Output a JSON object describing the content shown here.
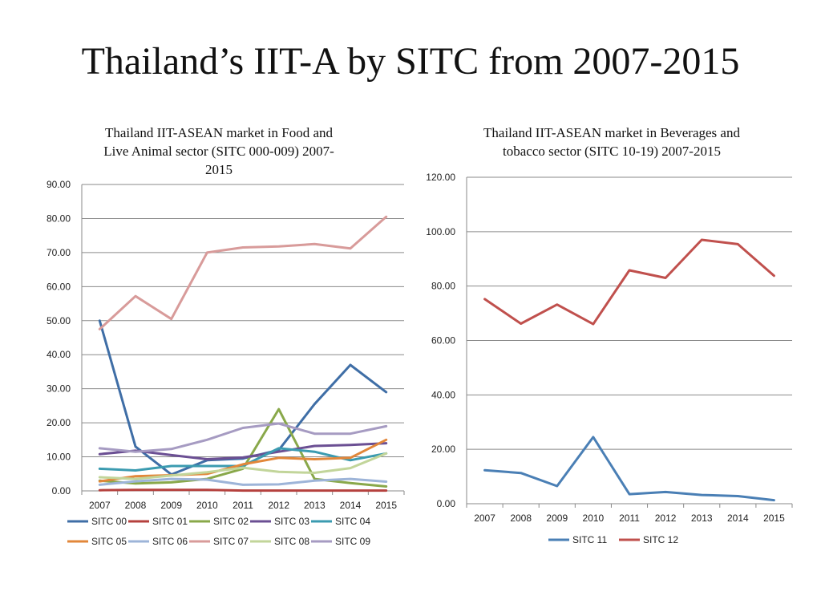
{
  "slide": {
    "title": "Thailand’s IIT-A by SITC from 2007-2015"
  },
  "chart_data": [
    {
      "type": "line",
      "title": "Thailand IIT-ASEAN market in Food and Live Animal sector (SITC 000-009) 2007-2015",
      "title_lines": [
        "Thailand IIT-ASEAN market in Food and",
        "Live Animal sector (SITC 000-009) 2007-",
        "2015"
      ],
      "xlabel": "",
      "ylabel": "",
      "categories": [
        "2007",
        "2008",
        "2009",
        "2010",
        "2011",
        "2012",
        "2013",
        "2014",
        "2015"
      ],
      "ylim": [
        0,
        90
      ],
      "yticks": [
        "0.00",
        "10.00",
        "20.00",
        "30.00",
        "40.00",
        "50.00",
        "60.00",
        "70.00",
        "80.00",
        "90.00"
      ],
      "grid": true,
      "legend": "bottom",
      "series": [
        {
          "name": "SITC 00",
          "color": "#3f6ea6",
          "values": [
            50.0,
            13.0,
            4.8,
            9.0,
            9.5,
            12.0,
            25.5,
            37.0,
            29.0
          ]
        },
        {
          "name": "SITC 01",
          "color": "#b5413e",
          "values": [
            0.2,
            0.3,
            0.3,
            0.3,
            0.1,
            0.1,
            0.1,
            0.1,
            0.1
          ]
        },
        {
          "name": "SITC 02",
          "color": "#89a84a",
          "values": [
            3.0,
            2.2,
            2.5,
            3.5,
            6.5,
            24.0,
            3.5,
            2.3,
            1.3
          ]
        },
        {
          "name": "SITC 03",
          "color": "#6b4f93",
          "values": [
            10.8,
            11.8,
            10.5,
            9.3,
            9.8,
            11.5,
            13.2,
            13.5,
            14.0
          ]
        },
        {
          "name": "SITC 04",
          "color": "#3b9bb0",
          "values": [
            6.5,
            6.0,
            7.3,
            7.3,
            7.3,
            12.5,
            11.5,
            9.0,
            11.0
          ]
        },
        {
          "name": "SITC 05",
          "color": "#e2873a",
          "values": [
            2.8,
            4.3,
            4.6,
            5.0,
            7.8,
            9.7,
            9.3,
            9.7,
            15.0
          ]
        },
        {
          "name": "SITC 06",
          "color": "#9db4d8",
          "values": [
            1.8,
            2.8,
            3.5,
            3.3,
            1.8,
            1.9,
            3.0,
            3.5,
            2.7
          ]
        },
        {
          "name": "SITC 07",
          "color": "#d89b9a",
          "values": [
            47.5,
            57.2,
            50.5,
            70.0,
            71.5,
            71.8,
            72.5,
            71.2,
            80.5
          ]
        },
        {
          "name": "SITC 08",
          "color": "#c2d59a",
          "values": [
            4.0,
            3.5,
            4.5,
            5.5,
            6.8,
            5.6,
            5.3,
            6.7,
            11.0
          ]
        },
        {
          "name": "SITC 09",
          "color": "#a69bc2",
          "values": [
            12.5,
            11.5,
            12.3,
            15.0,
            18.5,
            19.8,
            16.8,
            16.8,
            19.0
          ]
        }
      ]
    },
    {
      "type": "line",
      "title": "Thailand IIT-ASEAN market in Beverages and tobacco sector (SITC 10-19) 2007-2015",
      "title_lines": [
        "Thailand IIT-ASEAN market in Beverages and",
        "tobacco sector (SITC 10-19) 2007-2015"
      ],
      "xlabel": "",
      "ylabel": "",
      "categories": [
        "2007",
        "2008",
        "2009",
        "2010",
        "2011",
        "2012",
        "2013",
        "2014",
        "2015"
      ],
      "ylim": [
        0,
        120
      ],
      "yticks": [
        "0.00",
        "20.00",
        "40.00",
        "60.00",
        "80.00",
        "100.00",
        "120.00"
      ],
      "grid": true,
      "legend": "bottom",
      "series": [
        {
          "name": "SITC 11",
          "color": "#4a7fb5",
          "values": [
            12.3,
            11.3,
            6.5,
            24.5,
            3.5,
            4.3,
            3.2,
            2.8,
            1.3
          ]
        },
        {
          "name": "SITC 12",
          "color": "#c0504d",
          "values": [
            75.2,
            66.2,
            73.2,
            66.0,
            85.8,
            83.0,
            97.0,
            95.4,
            83.8
          ]
        }
      ]
    }
  ]
}
